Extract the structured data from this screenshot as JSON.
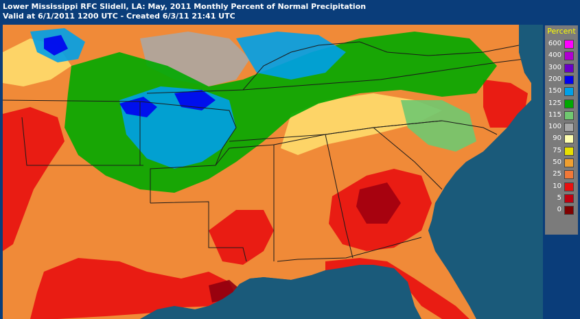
{
  "header": {
    "line1": "Lower Mississippi RFC Slidell, LA: May, 2011 Monthly Percent of Normal Precipitation",
    "line2": "Valid at 6/1/2011 1200 UTC - Created 6/3/11 21:41 UTC"
  },
  "legend": {
    "title": "Percent",
    "items": [
      {
        "label": "600",
        "color": "#ff00ff"
      },
      {
        "label": "400",
        "color": "#b000d0"
      },
      {
        "label": "300",
        "color": "#6a00c8"
      },
      {
        "label": "200",
        "color": "#0000f0"
      },
      {
        "label": "150",
        "color": "#00a0e8"
      },
      {
        "label": "125",
        "color": "#00a800"
      },
      {
        "label": "115",
        "color": "#70c870"
      },
      {
        "label": "100",
        "color": "#a8a8a8"
      },
      {
        "label": "90",
        "color": "#ffffb0"
      },
      {
        "label": "75",
        "color": "#e8e000"
      },
      {
        "label": "50",
        "color": "#f0a030"
      },
      {
        "label": "25",
        "color": "#f07838"
      },
      {
        "label": "10",
        "color": "#e81010"
      },
      {
        "label": "5",
        "color": "#c00010"
      },
      {
        "label": "0",
        "color": "#800000"
      }
    ]
  },
  "map": {
    "ocean_color": "#1a5a7a",
    "land_base_color": "#f08a38"
  }
}
